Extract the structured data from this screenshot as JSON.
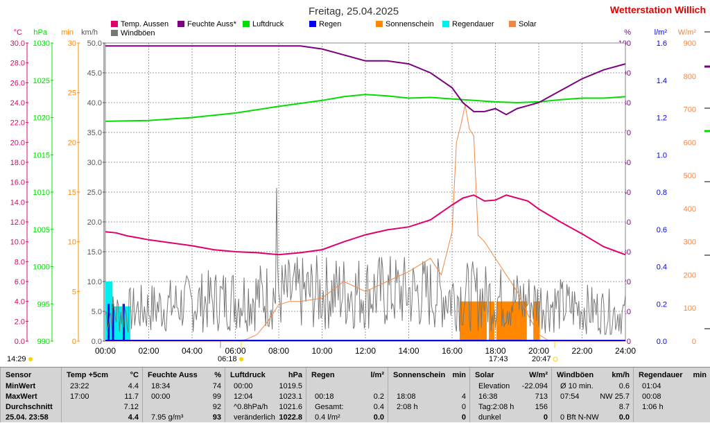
{
  "header": {
    "title": "Freitag, 25.04.2025",
    "station": "Wetterstation Willich"
  },
  "colors": {
    "temp": "#e0006a",
    "humidity": "#7a0080",
    "pressure": "#00dd00",
    "rain": "#0000ee",
    "sunshine": "#ff8800",
    "raintime": "#00eeee",
    "solar": "#ee8844",
    "gust": "#777777"
  },
  "legend": [
    {
      "label": "Temp. Aussen",
      "color": "#e0006a"
    },
    {
      "label": "Feuchte Auss*",
      "color": "#7a0080"
    },
    {
      "label": "Luftdruck",
      "color": "#00dd00"
    },
    {
      "label": "Regen",
      "color": "#0000ee"
    },
    {
      "label": "Sonnenschein",
      "color": "#ff8800"
    },
    {
      "label": "Regendauer",
      "color": "#00eeee"
    },
    {
      "label": "Solar",
      "color": "#ee8844"
    },
    {
      "label": "Windböen",
      "color": "#777777"
    }
  ],
  "axes_left": [
    {
      "unit": "°C",
      "color": "#e0006a",
      "ticks": [
        "30.0",
        "28.0",
        "26.0",
        "24.0",
        "22.0",
        "20.0",
        "18.0",
        "16.0",
        "14.0",
        "12.0",
        "10.0",
        "8.0",
        "6.0",
        "4.0",
        "2.0",
        "0.0"
      ]
    },
    {
      "unit": "hPa",
      "color": "#00dd00",
      "ticks": [
        "1030",
        "1025",
        "1020",
        "1015",
        "1010",
        "1005",
        "1000",
        "995",
        "990"
      ]
    },
    {
      "unit": "min",
      "color": "#ff8800",
      "ticks": [
        "30",
        "25",
        "20",
        "15",
        "10",
        "5",
        "0"
      ]
    },
    {
      "unit": "km/h",
      "color": "#555555",
      "ticks": [
        "50.0",
        "45.0",
        "40.0",
        "35.0",
        "30.0",
        "25.0",
        "20.0",
        "15.0",
        "10.0",
        "5.0",
        "0.0"
      ]
    }
  ],
  "axes_right": [
    {
      "unit": "%",
      "color": "#7a0080",
      "ticks": [
        "100",
        "90",
        "80",
        "70",
        "60",
        "50",
        "40",
        "30",
        "20",
        "10",
        "0"
      ]
    },
    {
      "unit": "l/m²",
      "color": "#0000ee",
      "ticks": [
        "1.6",
        "1.4",
        "1.2",
        "1.0",
        "0.8",
        "0.6",
        "0.4",
        "0.2",
        "0.0"
      ]
    },
    {
      "unit": "W/m²",
      "color": "#ee8844",
      "ticks": [
        "900",
        "800",
        "700",
        "600",
        "500",
        "400",
        "300",
        "200",
        "100",
        "0"
      ]
    }
  ],
  "chart_data": {
    "type": "line",
    "x_ticks": [
      "00:00",
      "02:00",
      "04:00",
      "06:00",
      "08:00",
      "10:00",
      "12:00",
      "14:00",
      "16:00",
      "18:00",
      "20:00",
      "22:00",
      "24:00"
    ],
    "x_range_hours": [
      0,
      24
    ],
    "markers": {
      "sunrise": "06:18",
      "noon": "14:29",
      "twilight": "17:43",
      "sunset": "20:47"
    },
    "series": [
      {
        "name": "Temp. Aussen",
        "unit": "°C",
        "range": [
          0,
          30
        ],
        "x": [
          0,
          0.5,
          1,
          1.5,
          2,
          3,
          4,
          5,
          6,
          7,
          8,
          9,
          10,
          11,
          12,
          13,
          14,
          15,
          16,
          16.5,
          17,
          17.5,
          18,
          18.5,
          19,
          19.5,
          20,
          21,
          22,
          23,
          24
        ],
        "y": [
          11.0,
          10.9,
          10.6,
          10.4,
          10.2,
          9.9,
          9.6,
          9.2,
          9.0,
          8.9,
          8.7,
          8.9,
          9.2,
          10.0,
          10.7,
          11.2,
          11.5,
          12.2,
          13.7,
          14.4,
          14.7,
          14.1,
          14.2,
          14.7,
          14.4,
          14.1,
          13.3,
          12.0,
          10.8,
          9.5,
          8.7
        ]
      },
      {
        "name": "Feuchte Auss*",
        "unit": "%",
        "range": [
          0,
          100
        ],
        "x": [
          0,
          2,
          4,
          6,
          8,
          9,
          10,
          11,
          12,
          13,
          14,
          15,
          16,
          16.5,
          17,
          17.5,
          18,
          18.5,
          19,
          19.5,
          20,
          21,
          22,
          23,
          24
        ],
        "y": [
          99,
          99,
          99,
          99,
          99,
          99,
          98,
          96,
          94,
          94,
          93,
          90,
          85,
          80,
          77,
          77,
          78,
          76,
          78,
          79,
          80,
          84,
          88,
          91,
          93
        ]
      },
      {
        "name": "Luftdruck",
        "unit": "hPa",
        "range": [
          990,
          1030
        ],
        "x": [
          0,
          2,
          4,
          6,
          8,
          10,
          11,
          12,
          13,
          14,
          15,
          16,
          17,
          18,
          19,
          20,
          21,
          22,
          23,
          24
        ],
        "y": [
          1019.5,
          1019.6,
          1020.0,
          1020.6,
          1021.5,
          1022.3,
          1022.8,
          1023.1,
          1022.9,
          1022.6,
          1022.7,
          1022.5,
          1022.3,
          1022.1,
          1022.0,
          1022.1,
          1022.4,
          1022.6,
          1022.6,
          1022.8
        ]
      },
      {
        "name": "Windböen",
        "unit": "km/h",
        "range": [
          0,
          50
        ],
        "avg": 8.7,
        "max": 25.7,
        "max_time": "07:54"
      },
      {
        "name": "Solar",
        "unit": "W/m²",
        "range": [
          0,
          900
        ],
        "max": 713,
        "max_time": "16:38",
        "x": [
          0,
          6,
          6.5,
          7,
          7.5,
          8,
          8.5,
          9,
          10,
          11,
          12,
          13,
          14,
          15,
          15.5,
          16,
          16.2,
          16.4,
          16.6,
          16.8,
          17,
          17.2,
          17.5,
          18,
          18.5,
          19,
          19.5,
          20,
          20.5,
          24
        ],
        "y": [
          0,
          0,
          5,
          20,
          60,
          110,
          120,
          120,
          130,
          180,
          150,
          180,
          210,
          250,
          200,
          330,
          600,
          650,
          713,
          640,
          620,
          320,
          300,
          250,
          200,
          150,
          80,
          20,
          0,
          0
        ]
      },
      {
        "name": "Sonnenschein",
        "unit": "min",
        "range": [
          0,
          30
        ],
        "total": "2:08 h",
        "blocks": [
          {
            "from": 16.35,
            "to": 17.6,
            "value": 4
          },
          {
            "from": 17.7,
            "to": 17.95,
            "value": 4
          },
          {
            "from": 18.05,
            "to": 19.45,
            "value": 4
          },
          {
            "from": 19.75,
            "to": 20.05,
            "value": 4
          }
        ]
      },
      {
        "name": "Regendauer",
        "unit": "min",
        "range": [
          0,
          30
        ],
        "total": "1:06 h",
        "blocks": [
          {
            "from": 0,
            "to": 0.33,
            "value": 6
          },
          {
            "from": 0.33,
            "to": 1.15,
            "value": 3.5
          }
        ]
      },
      {
        "name": "Regen",
        "unit": "l/m²",
        "range": [
          0,
          1.6
        ],
        "total": 0.4,
        "bars": [
          {
            "x": 0.15,
            "value": 0.2
          },
          {
            "x": 0.35,
            "value": 0.2
          },
          {
            "x": 0.85,
            "value": 0.2
          }
        ]
      }
    ]
  },
  "table": {
    "sensor": {
      "h": "Sensor",
      "rows": [
        "MinWert",
        "MaxWert",
        "Durchschnitt",
        "25.04. 23:58"
      ]
    },
    "temp": {
      "h": "Temp +5cm",
      "u": "°C",
      "rows": [
        [
          "23:22",
          "4.4"
        ],
        [
          "17:00",
          "11.7"
        ],
        [
          "",
          "7.12"
        ],
        [
          "",
          "4.4"
        ]
      ]
    },
    "hum": {
      "h": "Feuchte Auss",
      "u": "%",
      "rows": [
        [
          "18:34",
          "74"
        ],
        [
          "00:00",
          "99"
        ],
        [
          "",
          "92"
        ],
        [
          "7.95 g/m³",
          "93"
        ]
      ]
    },
    "press": {
      "h": "Luftdruck",
      "u": "hPa",
      "rows": [
        [
          "00:00",
          "1019.5"
        ],
        [
          "12:04",
          "1023.1"
        ],
        [
          "^0.8hPa/h",
          "1021.6"
        ],
        [
          "veränderlich",
          "1022.8"
        ]
      ]
    },
    "rain": {
      "h": "Regen",
      "u": "l/m²",
      "rows": [
        [
          "",
          ""
        ],
        [
          "00:18",
          "0.2"
        ],
        [
          "Gesamt:",
          "0.4"
        ],
        [
          "0.4 l/m²",
          "0.0"
        ]
      ]
    },
    "sun": {
      "h": "Sonnenschein",
      "u": "min",
      "rows": [
        [
          "",
          ""
        ],
        [
          "18:08",
          "4"
        ],
        [
          "2:08 h",
          "0"
        ],
        [
          "",
          "0"
        ]
      ]
    },
    "solar": {
      "h": "Solar",
      "u": "W/m²",
      "rows": [
        [
          "Elevation",
          "-22.094"
        ],
        [
          "16:38",
          "713"
        ],
        [
          "Tag:2:08 h",
          "156"
        ],
        [
          "dunkel",
          "0"
        ]
      ]
    },
    "wind": {
      "h": "Windböen",
      "u": "km/h",
      "rows": [
        [
          "Ø 10 min.",
          "0.6"
        ],
        [
          "07:54",
          "NW 25.7"
        ],
        [
          "",
          "8.7"
        ],
        [
          "0 Bft N-NW",
          "0.0"
        ]
      ]
    },
    "raindur": {
      "h": "Regendauer",
      "u": "min",
      "rows": [
        [
          "01:04",
          ""
        ],
        [
          "00:08",
          ""
        ],
        [
          "1:06 h",
          ""
        ],
        [
          "",
          ""
        ]
      ]
    }
  }
}
